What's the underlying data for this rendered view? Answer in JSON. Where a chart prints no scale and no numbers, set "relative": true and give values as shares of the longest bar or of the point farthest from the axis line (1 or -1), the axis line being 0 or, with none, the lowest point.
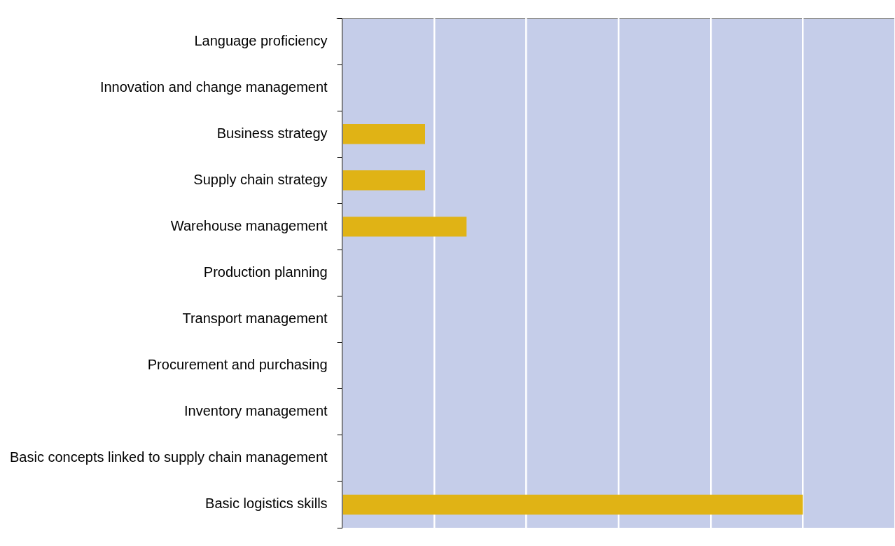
{
  "chart_data": {
    "type": "bar",
    "orientation": "horizontal",
    "relative": true,
    "grid": "x",
    "legend": false,
    "categories": [
      "Language proficiency",
      "Innovation and change management",
      "Business strategy",
      "Supply chain strategy",
      "Warehouse management",
      "Production planning",
      "Transport management",
      "Procurement and purchasing",
      "Inventory management",
      "Basic concepts linked to supply chain management",
      "Basic logistics skills"
    ],
    "values": [
      0,
      0,
      0.18,
      0.18,
      0.27,
      0,
      0,
      0,
      0,
      0,
      1
    ],
    "color": "#e0b315"
  }
}
